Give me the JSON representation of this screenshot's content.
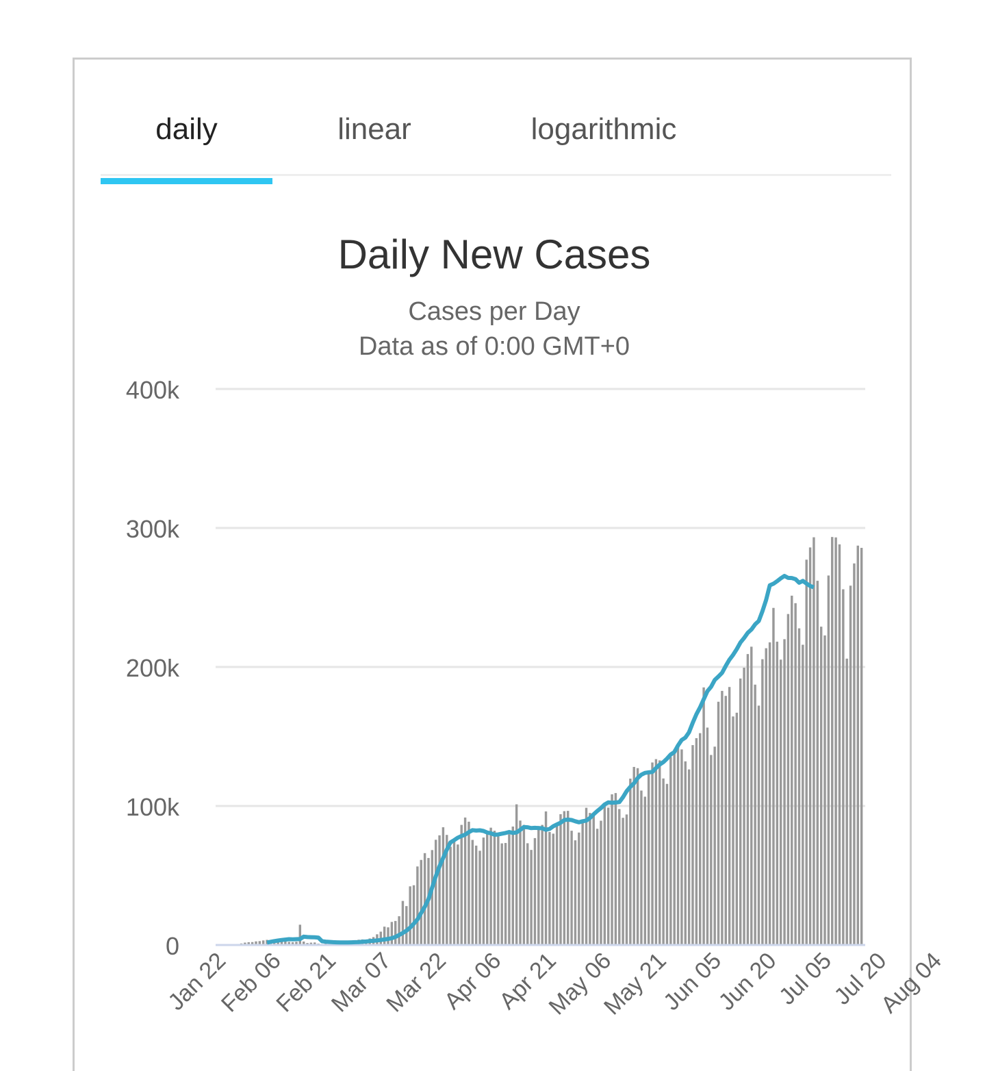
{
  "tabs": [
    {
      "label": "daily",
      "active": true
    },
    {
      "label": "linear",
      "active": false
    },
    {
      "label": "logarithmic",
      "active": false
    }
  ],
  "colors": {
    "accent": "#2fc6f2",
    "bar": "#999999",
    "line": "#3ba5c5",
    "grid": "#e6e6e6",
    "axis": "#ccd6eb"
  },
  "chart_data": {
    "type": "bar",
    "title": "Daily New Cases",
    "subtitle_lines": [
      "Cases per Day",
      "Data as of 0:00 GMT+0"
    ],
    "ylim": [
      0,
      400000
    ],
    "yticks": [
      {
        "value": 0,
        "label": "0"
      },
      {
        "value": 100000,
        "label": "100k"
      },
      {
        "value": 200000,
        "label": "200k"
      },
      {
        "value": 300000,
        "label": "300k"
      },
      {
        "value": 400000,
        "label": "400k"
      }
    ],
    "x_range": [
      "Jan 22",
      "Aug 09"
    ],
    "xticks": [
      "Jan 22",
      "Feb 06",
      "Feb 21",
      "Mar 07",
      "Mar 22",
      "Apr 06",
      "Apr 21",
      "May 06",
      "May 21",
      "Jun 05",
      "Jun 20",
      "Jul 05",
      "Jul 20",
      "Aug 04"
    ],
    "grid": true,
    "legend": "none",
    "series": [
      {
        "type": "bar",
        "values": [
          0,
          100,
          250,
          550,
          750,
          1100,
          1700,
          2000,
          2100,
          2600,
          2800,
          3300,
          3700,
          3200,
          3500,
          3100,
          3500,
          2900,
          2200,
          2000,
          2300,
          14600,
          2500,
          1400,
          1700,
          1800,
          1000,
          500,
          1400,
          900,
          1500,
          1500,
          2000,
          2100,
          2500,
          2200,
          3300,
          3800,
          4000,
          3500,
          4700,
          5700,
          7700,
          9600,
          13200,
          12700,
          16600,
          17300,
          20700,
          31700,
          28000,
          42200,
          43000,
          56500,
          61200,
          66100,
          62600,
          68300,
          75700,
          78900,
          84700,
          79200,
          70700,
          76300,
          72300,
          86400,
          91700,
          88700,
          75600,
          71500,
          67800,
          77300,
          80500,
          84400,
          82200,
          78200,
          73100,
          73400,
          79700,
          85200,
          101200,
          89500,
          86400,
          73200,
          68400,
          76900,
          85600,
          86400,
          96100,
          81300,
          80100,
          85800,
          94100,
          96300,
          96500,
          82200,
          75300,
          80900,
          88400,
          98700,
          95000,
          94600,
          83600,
          89400,
          101600,
          98800,
          108400,
          109300,
          97800,
          91500,
          93900,
          119700,
          128100,
          127200,
          111100,
          106700,
          123100,
          131300,
          133700,
          132800,
          119800,
          115900,
          135300,
          140700,
          143200,
          140700,
          132100,
          126300,
          143800,
          148800,
          152400,
          185300,
          156400,
          136700,
          142700,
          175000,
          182800,
          179200,
          185600,
          164400,
          167100,
          191700,
          199500,
          209300,
          214600,
          187300,
          172200,
          205600,
          213500,
          217700,
          242500,
          218200,
          205300,
          220000,
          238100,
          251300,
          245900,
          227800,
          216000,
          277200,
          286000,
          293300,
          262000,
          229000,
          222700,
          265800,
          293500,
          293200,
          288200,
          255900,
          206000,
          258500,
          274500,
          287300,
          285700
        ]
      },
      {
        "type": "line",
        "values": [
          1700,
          2300,
          2800,
          3200,
          3600,
          3900,
          4200,
          4100,
          4200,
          4300,
          6000,
          5700,
          5600,
          5500,
          5300,
          2700,
          2400,
          2200,
          2000,
          1900,
          1800,
          1800,
          1800,
          1900,
          2000,
          2100,
          2300,
          2500,
          2800,
          3000,
          3300,
          3600,
          4000,
          4400,
          4900,
          5800,
          7200,
          8600,
          10300,
          12500,
          15300,
          18400,
          23000,
          27500,
          33000,
          41300,
          49500,
          56600,
          62600,
          68600,
          73800,
          75400,
          77200,
          78400,
          79400,
          81200,
          82600,
          82300,
          82500,
          82000,
          80900,
          80400,
          79300,
          79500,
          80100,
          80600,
          81300,
          80600,
          81000,
          82800,
          84900,
          84700,
          84100,
          84300,
          84100,
          84000,
          82900,
          83500,
          85400,
          86700,
          88000,
          89900,
          90200,
          89900,
          89000,
          88300,
          89000,
          89500,
          91400,
          94000,
          96400,
          98500,
          101100,
          102600,
          102300,
          102500,
          102800,
          106300,
          110700,
          113800,
          116300,
          120100,
          122500,
          123800,
          124200,
          124500,
          127300,
          129800,
          131600,
          134100,
          137000,
          138800,
          143600,
          147500,
          149200,
          153000,
          159800,
          166000,
          170900,
          176800,
          182600,
          185700,
          190700,
          193100,
          195800,
          200800,
          205200,
          208700,
          212800,
          217600,
          220900,
          224600,
          227000,
          230700,
          233100,
          240200,
          248200,
          258700,
          259900,
          261700,
          263800,
          265500,
          264100,
          264000,
          263200,
          260600,
          261900,
          260000,
          258300,
          257300
        ],
        "start_index": 12
      }
    ]
  }
}
